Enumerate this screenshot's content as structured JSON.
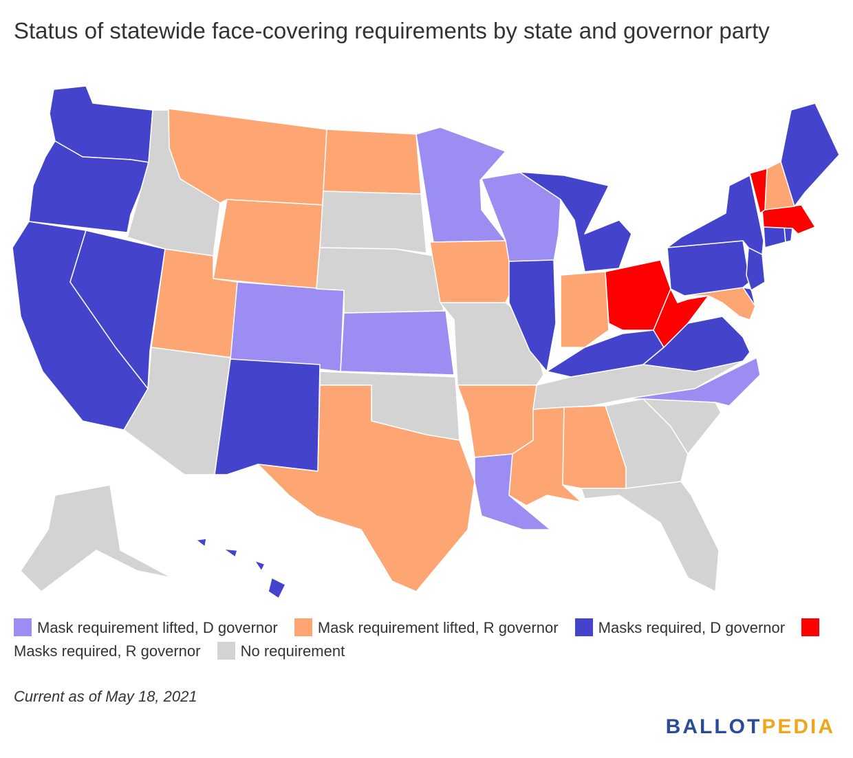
{
  "title": "Status of statewide face-covering requirements by state and governor party",
  "colors": {
    "lifted_d": "#9b8df2",
    "lifted_r": "#fea574",
    "required_d": "#4343cc",
    "required_r": "#ff0000",
    "none": "#d3d3d3"
  },
  "legend": [
    {
      "key": "lifted_d",
      "label": "Mask requirement lifted, D governor"
    },
    {
      "key": "lifted_r",
      "label": "Mask requirement lifted, R governor"
    },
    {
      "key": "required_d",
      "label": "Masks required, D governor"
    },
    {
      "key": "required_r",
      "label": "Masks required, R governor"
    },
    {
      "key": "none",
      "label": "No requirement"
    }
  ],
  "note": "Current as of May 18, 2021",
  "logo": {
    "part1": "BALLOT",
    "part2": "PEDIA"
  },
  "states": {
    "WA": "required_d",
    "OR": "required_d",
    "CA": "required_d",
    "NV": "required_d",
    "ID": "none",
    "MT": "lifted_r",
    "WY": "lifted_r",
    "UT": "lifted_r",
    "AZ": "none",
    "CO": "lifted_d",
    "NM": "required_d",
    "ND": "lifted_r",
    "SD": "none",
    "NE": "none",
    "KS": "lifted_d",
    "OK": "none",
    "TX": "lifted_r",
    "MN": "lifted_d",
    "IA": "lifted_r",
    "MO": "none",
    "AR": "lifted_r",
    "LA": "lifted_d",
    "WI": "lifted_d",
    "IL": "required_d",
    "MI": "required_d",
    "IN": "lifted_r",
    "OH": "required_r",
    "KY": "required_d",
    "TN": "none",
    "MS": "lifted_r",
    "AL": "lifted_r",
    "GA": "none",
    "FL": "none",
    "SC": "none",
    "NC": "lifted_d",
    "VA": "required_d",
    "WV": "required_r",
    "MD": "lifted_r",
    "DE": "required_d",
    "PA": "required_d",
    "NJ": "required_d",
    "NY": "required_d",
    "CT": "required_d",
    "RI": "required_d",
    "MA": "required_r",
    "VT": "required_r",
    "NH": "lifted_r",
    "ME": "required_d",
    "AK": "none",
    "HI": "required_d"
  }
}
